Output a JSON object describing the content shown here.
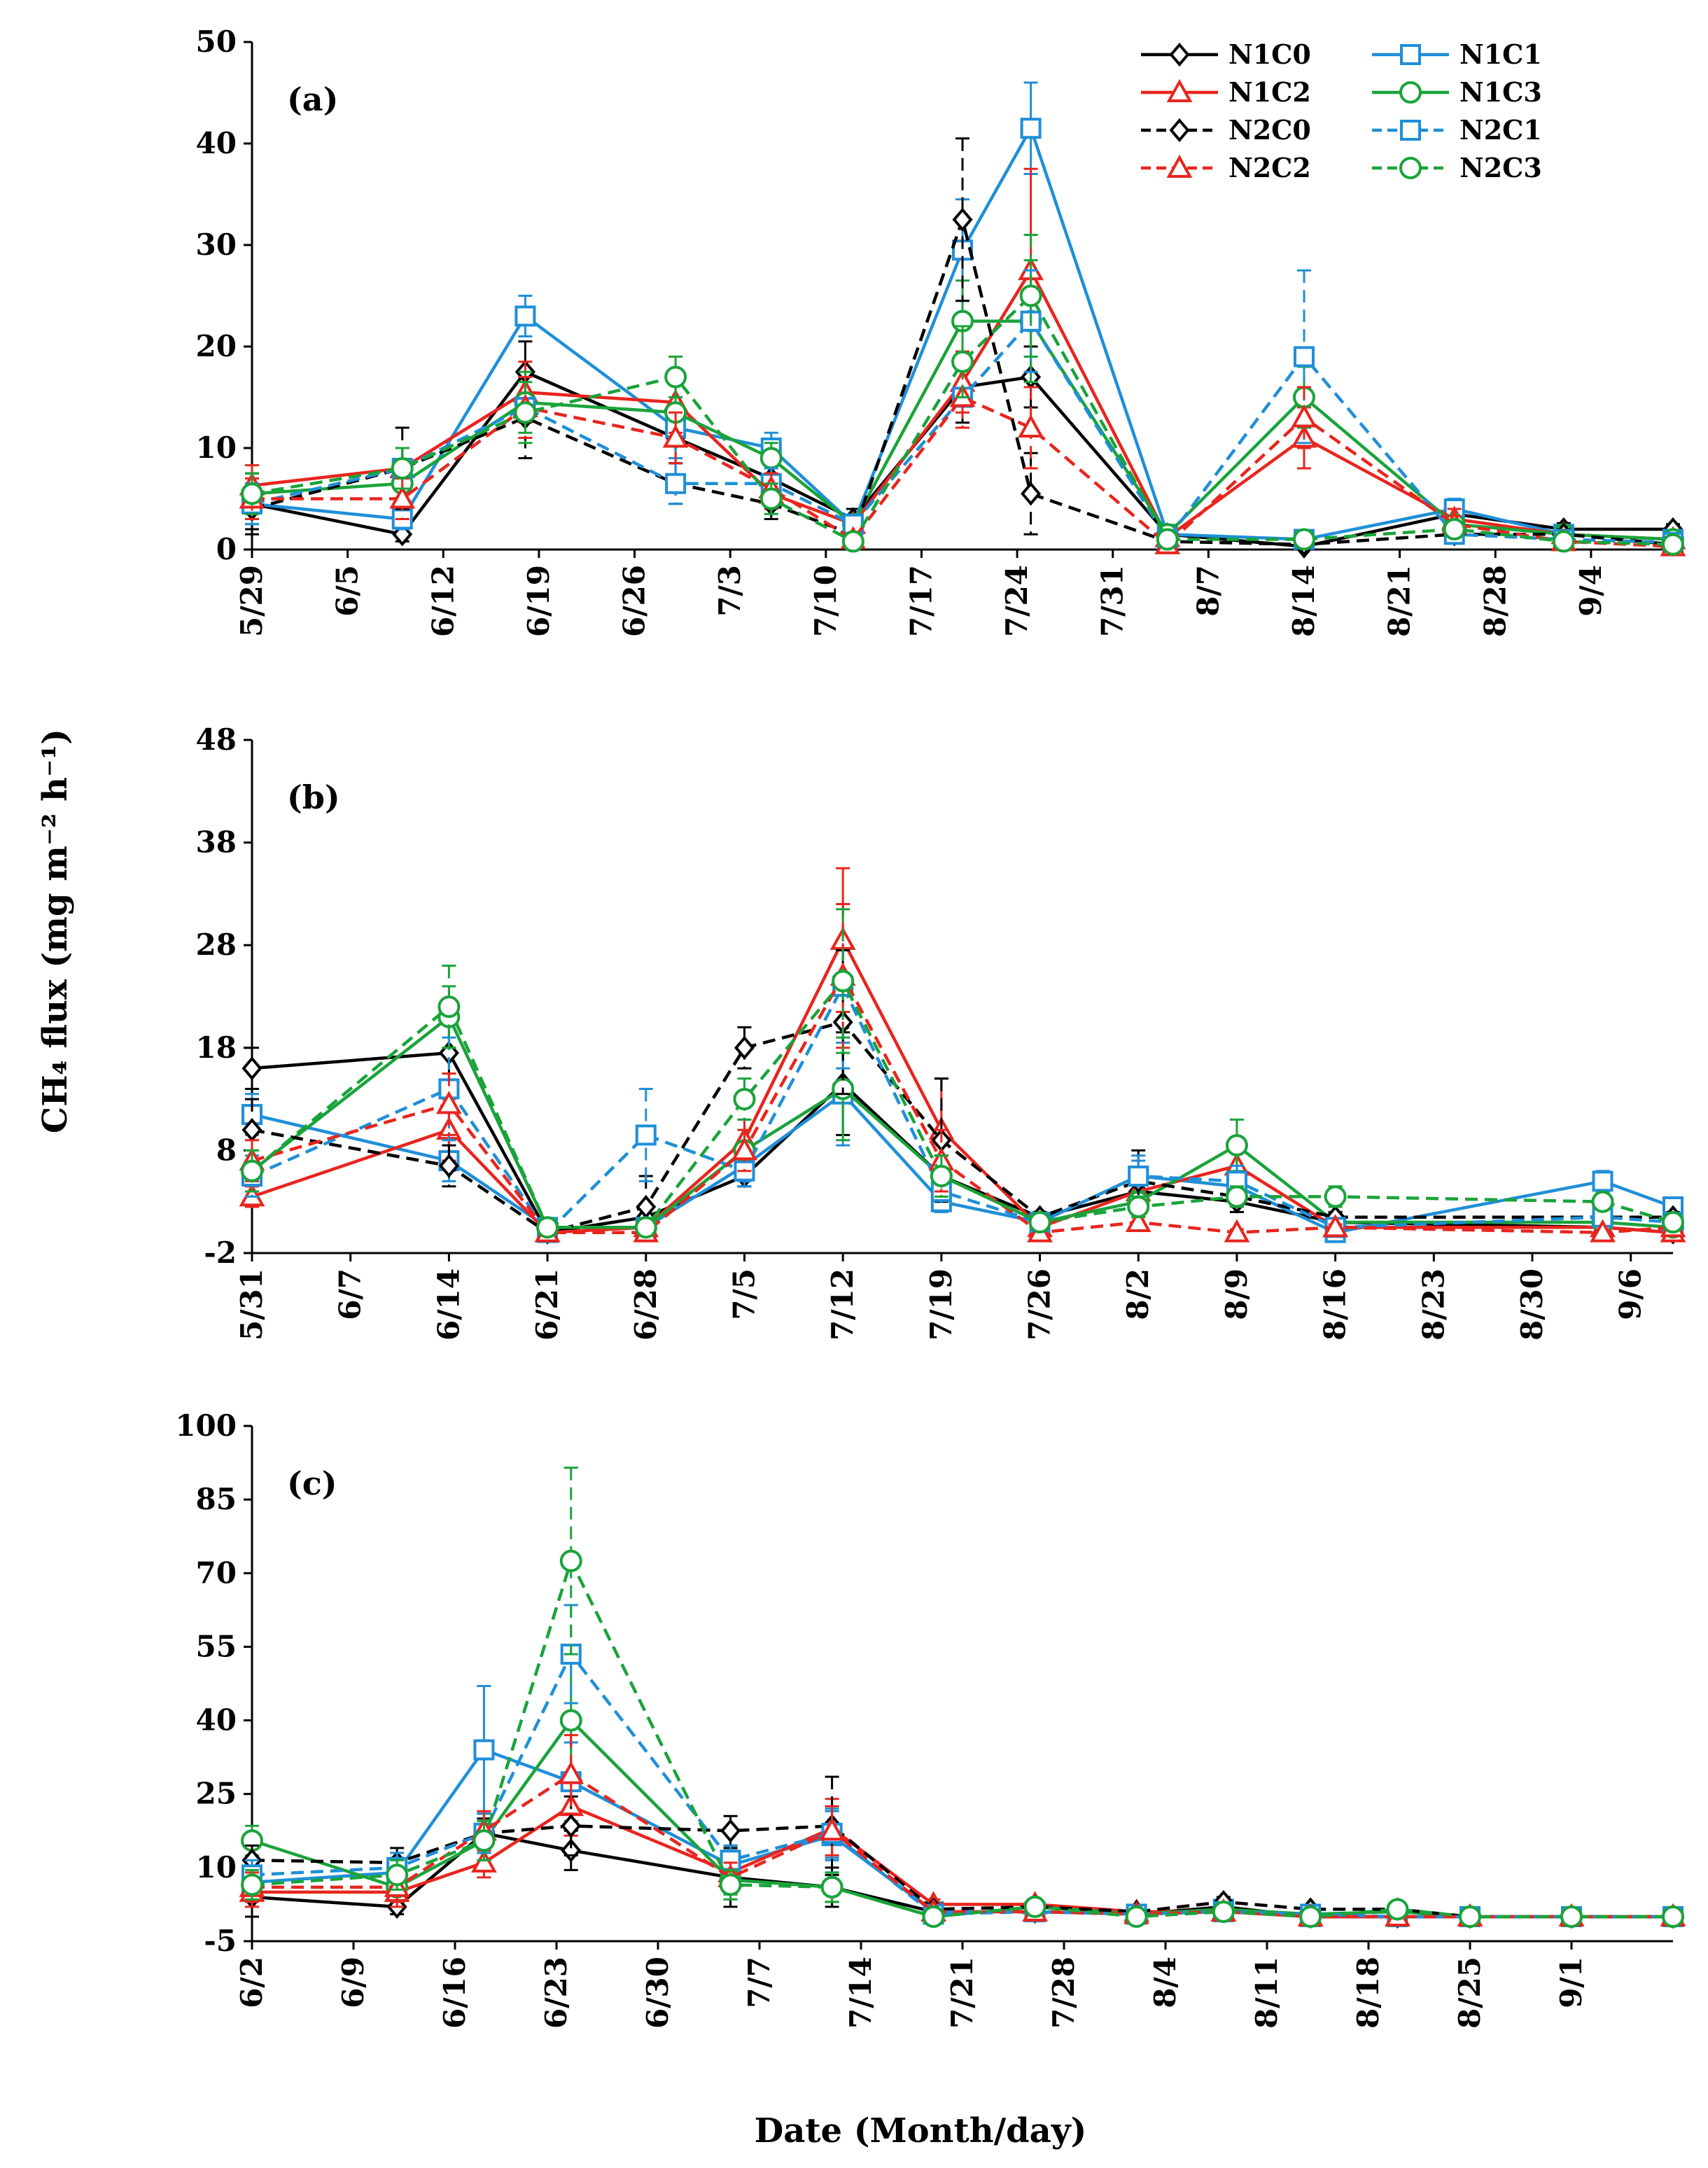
{
  "y_axis_title": "CH₄ flux (mg m⁻² h⁻¹)",
  "x_axis_title": "Date (Month/day)",
  "legend": [
    {
      "key": "N1C0",
      "label": "N1C0"
    },
    {
      "key": "N1C1",
      "label": "N1C1"
    },
    {
      "key": "N1C2",
      "label": "N1C2"
    },
    {
      "key": "N1C3",
      "label": "N1C3"
    },
    {
      "key": "N2C0",
      "label": "N2C0"
    },
    {
      "key": "N2C1",
      "label": "N2C1"
    },
    {
      "key": "N2C2",
      "label": "N2C2"
    },
    {
      "key": "N2C3",
      "label": "N2C3"
    }
  ],
  "series_styles": {
    "N1C0": {
      "color": "#000000",
      "marker": "diamond",
      "dash": "solid"
    },
    "N1C1": {
      "color": "#1F8FD8",
      "marker": "square",
      "dash": "solid"
    },
    "N1C2": {
      "color": "#E8251E",
      "marker": "triangle",
      "dash": "solid"
    },
    "N1C3": {
      "color": "#1AA33A",
      "marker": "circle",
      "dash": "solid"
    },
    "N2C0": {
      "color": "#000000",
      "marker": "diamond",
      "dash": "dashed"
    },
    "N2C1": {
      "color": "#1F8FD8",
      "marker": "square",
      "dash": "dashed"
    },
    "N2C2": {
      "color": "#E8251E",
      "marker": "triangle",
      "dash": "dashed"
    },
    "N2C3": {
      "color": "#1AA33A",
      "marker": "circle",
      "dash": "dashed"
    }
  },
  "chart_data": [
    {
      "type": "line",
      "panel": "(a)",
      "ylim": [
        0,
        50
      ],
      "yticks": [
        0,
        10,
        20,
        30,
        40,
        50
      ],
      "xlim": [
        0,
        104
      ],
      "xticks": {
        "positions": [
          0,
          7,
          14,
          21,
          28,
          35,
          42,
          49,
          56,
          63,
          70,
          77,
          84,
          91,
          98
        ],
        "labels": [
          "5/29",
          "6/5",
          "6/12",
          "6/19",
          "6/26",
          "7/3",
          "7/10",
          "7/17",
          "7/24",
          "7/31",
          "8/7",
          "8/14",
          "8/21",
          "8/28",
          "9/4"
        ]
      },
      "x": [
        0,
        11,
        20,
        31,
        38,
        44,
        52,
        57,
        67,
        77,
        88,
        96,
        104
      ],
      "series": [
        {
          "name": "N1C0",
          "values": [
            4.5,
            1.5,
            17.5,
            11,
            7,
            3,
            16,
            17,
            1.5,
            0.3,
            3.5,
            2,
            2
          ],
          "err": [
            3,
            0.7,
            3,
            2.5,
            2,
            1,
            3.5,
            3,
            0.5,
            0.2,
            0.8,
            0.6,
            0.5
          ]
        },
        {
          "name": "N1C1",
          "values": [
            4.5,
            3,
            23,
            12,
            10,
            2.5,
            29.5,
            41.5,
            1.5,
            1,
            4,
            1.5,
            1
          ],
          "err": [
            2,
            1,
            2,
            3,
            1.5,
            0.8,
            5,
            4.5,
            0.5,
            0.4,
            1,
            0.5,
            0.3
          ]
        },
        {
          "name": "N1C2",
          "values": [
            6.3,
            8,
            15.5,
            14.5,
            5.5,
            2.5,
            16.5,
            27.5,
            1.2,
            11,
            3,
            1.5,
            1
          ],
          "err": [
            2,
            2,
            3,
            3,
            1.5,
            0.8,
            3,
            10,
            0.4,
            3,
            1,
            0.5,
            0.3
          ]
        },
        {
          "name": "N1C3",
          "values": [
            5.5,
            6.5,
            14.5,
            13.5,
            9,
            2.5,
            22.5,
            22.5,
            1.5,
            15,
            2.5,
            1.5,
            1
          ],
          "err": [
            2,
            2,
            3,
            3,
            1.5,
            0.8,
            4,
            6,
            0.4,
            3,
            0.8,
            0.5,
            0.3
          ]
        },
        {
          "name": "N2C0",
          "values": [
            4,
            8,
            13,
            6.5,
            4.5,
            1.5,
            32.5,
            5.5,
            0.8,
            0.5,
            1.5,
            1.5,
            0.5
          ],
          "err": [
            2,
            4,
            4,
            2,
            1.5,
            0.8,
            8,
            4,
            0.4,
            0.3,
            0.5,
            0.5,
            0.3
          ]
        },
        {
          "name": "N2C1",
          "values": [
            4.5,
            8,
            14,
            6.5,
            6.5,
            2.5,
            15,
            22.5,
            1,
            19,
            1.5,
            1,
            0.7
          ],
          "err": [
            2,
            2,
            3,
            2,
            1.5,
            0.8,
            3,
            5,
            0.4,
            8.5,
            0.5,
            0.4,
            0.3
          ]
        },
        {
          "name": "N2C2",
          "values": [
            5,
            5,
            14,
            11,
            6,
            1,
            15,
            12,
            0.5,
            13,
            2.5,
            0.8,
            0.3
          ],
          "err": [
            2,
            2,
            3,
            2.5,
            1.5,
            0.5,
            3,
            4,
            0.3,
            3,
            0.8,
            0.3,
            0.2
          ]
        },
        {
          "name": "N2C3",
          "values": [
            5.5,
            8,
            13.5,
            17,
            5,
            0.8,
            18.5,
            25,
            1,
            1,
            2,
            0.8,
            0.5
          ],
          "err": [
            2,
            2,
            3,
            2,
            1.5,
            0.5,
            3.5,
            6,
            0.4,
            0.4,
            0.7,
            0.3,
            0.2
          ]
        }
      ]
    },
    {
      "type": "line",
      "panel": "(b)",
      "ylim": [
        -2,
        48
      ],
      "yticks": [
        -2,
        8,
        18,
        28,
        38,
        48
      ],
      "xlim": [
        0,
        101
      ],
      "xticks": {
        "positions": [
          0,
          7,
          14,
          21,
          28,
          35,
          42,
          49,
          56,
          63,
          70,
          77,
          84,
          91,
          98
        ],
        "labels": [
          "5/31",
          "6/7",
          "6/14",
          "6/21",
          "6/28",
          "7/5",
          "7/12",
          "7/19",
          "7/26",
          "8/2",
          "8/9",
          "8/16",
          "8/23",
          "8/30",
          "9/6"
        ]
      },
      "x": [
        0,
        14,
        21,
        28,
        35,
        42,
        49,
        56,
        63,
        70,
        77,
        96,
        101
      ],
      "series": [
        {
          "name": "N1C0",
          "values": [
            16,
            17.5,
            0,
            1.5,
            5.5,
            14.5,
            5.5,
            1.5,
            4,
            3,
            1,
            0.5,
            0
          ],
          "err": [
            2,
            3,
            0.5,
            1,
            1,
            5,
            2,
            0.5,
            1,
            1,
            0.5,
            0.3,
            0.3
          ]
        },
        {
          "name": "N1C1",
          "values": [
            11.5,
            7,
            0.5,
            0.5,
            6.5,
            13.5,
            3,
            1,
            5.5,
            4.5,
            0,
            5,
            2.5
          ],
          "err": [
            2,
            2,
            0.5,
            0.5,
            1.5,
            5,
            1,
            0.5,
            1.5,
            1.5,
            0.3,
            1,
            0.5
          ]
        },
        {
          "name": "N1C2",
          "values": [
            3.5,
            10,
            0,
            0.5,
            9,
            28.5,
            10,
            0.5,
            4,
            6.5,
            0.5,
            0.5,
            0
          ],
          "err": [
            1,
            3,
            0.3,
            0.3,
            2,
            7,
            5,
            0.3,
            1,
            1.5,
            0.3,
            0.3,
            0.3
          ]
        },
        {
          "name": "N1C3",
          "values": [
            6,
            21,
            0.5,
            0.5,
            8,
            14,
            5.5,
            1,
            3,
            8.5,
            1,
            1,
            0.5
          ],
          "err": [
            2,
            3,
            0.3,
            0.3,
            2,
            5,
            2,
            0.5,
            1,
            2.5,
            0.5,
            0.5,
            0.3
          ]
        },
        {
          "name": "N2C0",
          "values": [
            10,
            6.5,
            0,
            2.5,
            18,
            20.5,
            9,
            1.5,
            5,
            3.5,
            1.5,
            1.5,
            1.5
          ],
          "err": [
            3,
            2,
            0.3,
            3,
            2,
            7,
            6,
            0.5,
            3,
            1,
            0.5,
            0.5,
            0.5
          ]
        },
        {
          "name": "N2C1",
          "values": [
            5.5,
            14,
            0,
            9.5,
            6,
            24,
            4,
            1,
            5.5,
            5,
            0.5,
            1.5,
            1
          ],
          "err": [
            2,
            5,
            0.3,
            4.5,
            1.5,
            8,
            2,
            0.5,
            2,
            1.5,
            0.3,
            0.5,
            0.3
          ]
        },
        {
          "name": "N2C2",
          "values": [
            7,
            12.5,
            0,
            0,
            8,
            25,
            7,
            0,
            1,
            0,
            0.5,
            0,
            0.5
          ],
          "err": [
            2,
            3,
            0.3,
            0.3,
            2,
            7,
            3,
            0.3,
            0.5,
            0.3,
            0.3,
            0.3,
            0.3
          ]
        },
        {
          "name": "N2C3",
          "values": [
            6,
            22,
            0.5,
            0.5,
            13,
            24.5,
            5.5,
            1,
            2.5,
            3.5,
            3.5,
            3,
            1
          ],
          "err": [
            2,
            4,
            0.3,
            0.3,
            2,
            7,
            2,
            0.5,
            1,
            1,
            1,
            0.8,
            0.3
          ]
        }
      ]
    },
    {
      "type": "line",
      "panel": "(c)",
      "ylim": [
        -5,
        100
      ],
      "yticks": [
        -5,
        10,
        25,
        40,
        55,
        70,
        85,
        100
      ],
      "xlim": [
        0,
        98
      ],
      "xticks": {
        "positions": [
          0,
          7,
          14,
          21,
          28,
          35,
          42,
          49,
          56,
          63,
          70,
          77,
          84,
          91
        ],
        "labels": [
          "6/2",
          "6/9",
          "6/16",
          "6/23",
          "6/30",
          "7/7",
          "7/14",
          "7/21",
          "7/28",
          "8/4",
          "8/11",
          "8/18",
          "8/25",
          "9/1"
        ]
      },
      "x": [
        0,
        10,
        16,
        22,
        33,
        40,
        47,
        54,
        61,
        67,
        73,
        79,
        84,
        91,
        98
      ],
      "series": [
        {
          "name": "N1C0",
          "values": [
            4,
            2,
            17,
            13.5,
            8,
            6,
            1,
            1,
            0.5,
            2,
            0,
            0,
            0,
            0,
            0
          ],
          "err": [
            4,
            1.5,
            3,
            4,
            6,
            4,
            0.5,
            0.5,
            0.3,
            0.5,
            0.3,
            0.3,
            0.3,
            0.3,
            0.3
          ]
        },
        {
          "name": "N1C1",
          "values": [
            7,
            9,
            34,
            27.5,
            10.5,
            16.5,
            1,
            1,
            0.5,
            1.5,
            0,
            0,
            0,
            0,
            0
          ],
          "err": [
            3,
            3,
            13,
            8,
            3,
            5,
            0.5,
            0.5,
            0.3,
            0.5,
            0.3,
            0.3,
            0.3,
            0.3,
            0.3
          ]
        },
        {
          "name": "N1C2",
          "values": [
            5,
            5,
            11,
            22.5,
            9,
            18,
            2.5,
            2.5,
            1,
            1,
            0,
            0,
            0,
            0,
            0
          ],
          "err": [
            3,
            3,
            3,
            6,
            3,
            6,
            1,
            1,
            0.5,
            0.5,
            0.3,
            0.3,
            0.3,
            0.3,
            0.3
          ]
        },
        {
          "name": "N1C3",
          "values": [
            15.5,
            6,
            15.5,
            40,
            7.5,
            6,
            0,
            2,
            0.5,
            1.5,
            0.5,
            1,
            0,
            0,
            0
          ],
          "err": [
            3,
            3,
            4,
            12,
            3,
            3,
            0.5,
            0.5,
            0.3,
            0.5,
            0.3,
            0.3,
            0.3,
            0.3,
            0.3
          ]
        },
        {
          "name": "N2C0",
          "values": [
            11.5,
            11,
            17,
            18.5,
            17.5,
            18.5,
            1.5,
            2,
            1,
            3,
            1.5,
            1.5,
            0,
            0,
            0
          ],
          "err": [
            3,
            3,
            4,
            6,
            3,
            10,
            0.5,
            0.5,
            0.5,
            1,
            0.5,
            0.5,
            0.3,
            0.3,
            0.3
          ]
        },
        {
          "name": "N2C1",
          "values": [
            8.5,
            10,
            17,
            53.5,
            11.5,
            17,
            0.5,
            1,
            0.5,
            1,
            0.5,
            0,
            0,
            0,
            0
          ],
          "err": [
            3,
            3,
            4,
            10,
            3,
            5,
            0.5,
            0.5,
            0.3,
            0.5,
            0.3,
            0.3,
            0.3,
            0.3,
            0.3
          ]
        },
        {
          "name": "N2C2",
          "values": [
            6,
            6,
            17.5,
            29,
            8,
            17.5,
            1,
            1,
            0.5,
            1,
            0,
            0,
            0,
            0,
            0
          ],
          "err": [
            3,
            3,
            4,
            8,
            3,
            5,
            0.5,
            0.5,
            0.3,
            0.5,
            0.3,
            0.3,
            0.3,
            0.3,
            0.3
          ]
        },
        {
          "name": "N2C3",
          "values": [
            6.5,
            8.5,
            15.5,
            72.5,
            6.5,
            6,
            0,
            2,
            0,
            1,
            0,
            1.5,
            0,
            0,
            0
          ],
          "err": [
            3,
            3,
            4,
            19,
            3,
            3,
            0.5,
            0.5,
            0.3,
            0.5,
            0.3,
            0.5,
            0.3,
            0.3,
            0.3
          ]
        }
      ]
    }
  ]
}
